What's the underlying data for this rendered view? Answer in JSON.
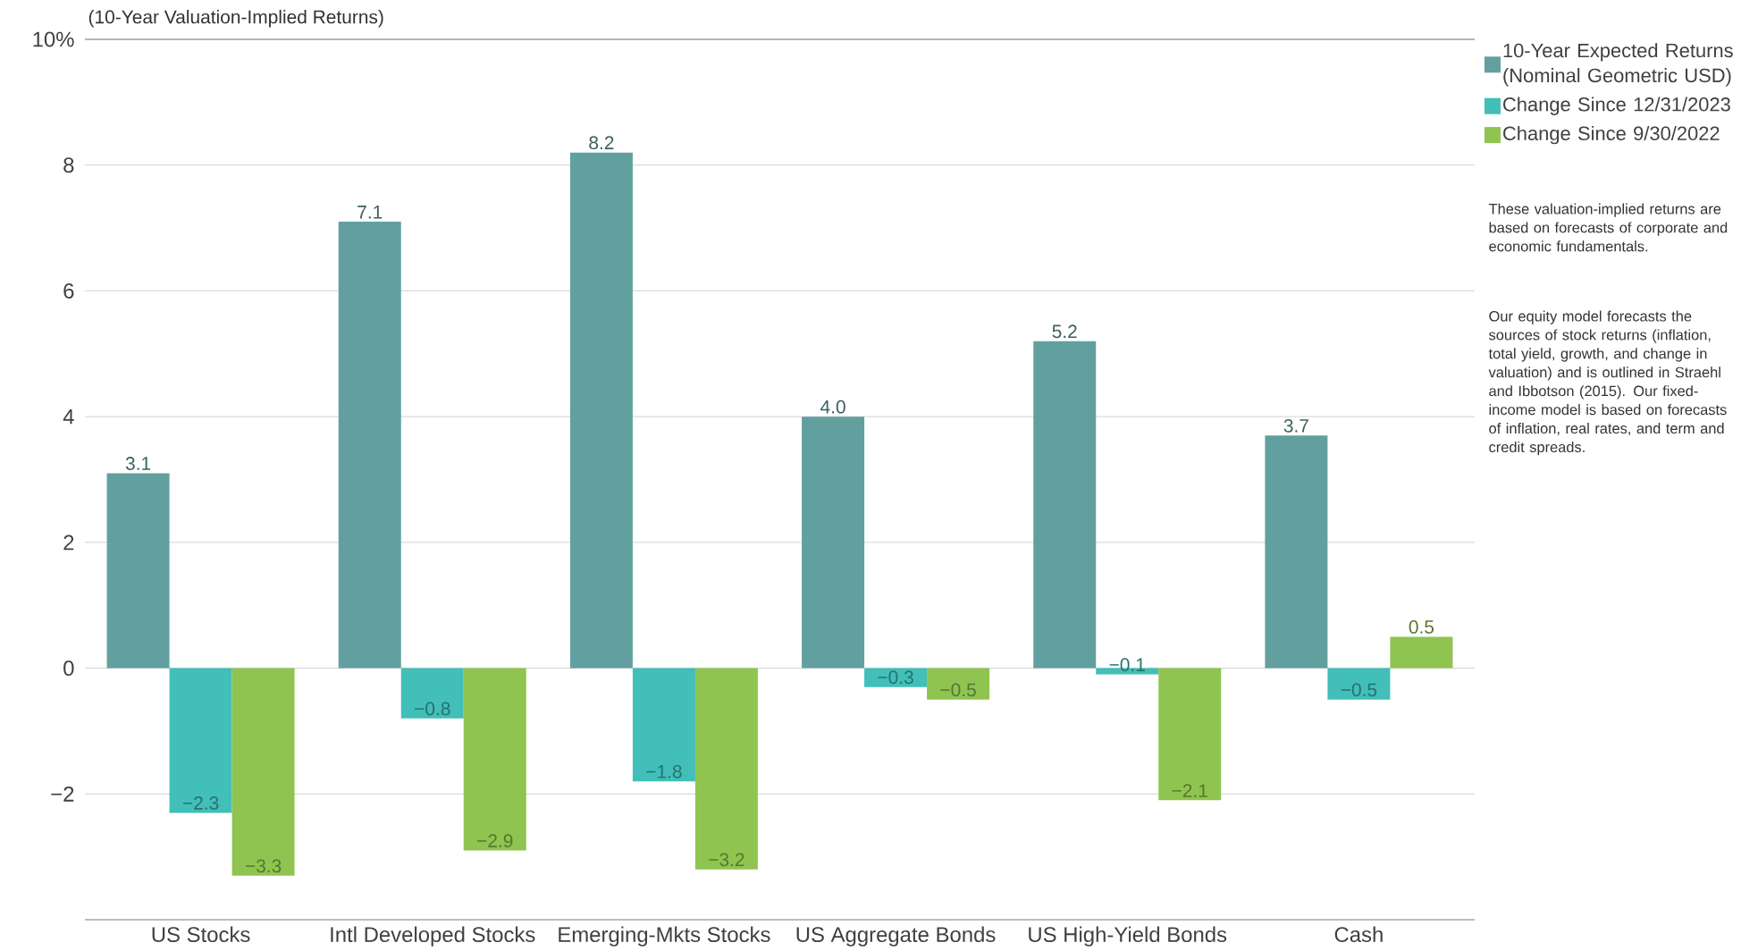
{
  "chart_data": {
    "type": "bar",
    "title": "(10-Year Valuation-Implied Returns)",
    "categories": [
      "US Stocks",
      "Intl Developed Stocks",
      "Emerging-Mkts Stocks",
      "US Aggregate Bonds",
      "US High-Yield Bonds",
      "Cash"
    ],
    "series": [
      {
        "name": "10-Year Expected Returns (Nominal Geometric USD)",
        "color": "#62a09f",
        "values": [
          3.1,
          7.1,
          8.2,
          4.0,
          5.2,
          3.7
        ],
        "value_labels": [
          "3.1",
          "7.1",
          "8.2",
          "4.0",
          "5.2",
          "3.7"
        ]
      },
      {
        "name": "Change Since 12/31/2023",
        "color": "#41bfb8",
        "values": [
          -2.3,
          -0.8,
          -1.8,
          -0.3,
          -0.1,
          -0.5
        ],
        "value_labels": [
          "−2.3",
          "−0.8",
          "−1.8",
          "−0.3",
          "−0.1",
          "−0.5"
        ]
      },
      {
        "name": "Change Since 9/30/2022",
        "color": "#8fc450",
        "values": [
          -3.3,
          -2.9,
          -3.2,
          -0.5,
          -2.1,
          0.5
        ],
        "value_labels": [
          "−3.3",
          "−2.9",
          "−3.2",
          "−0.5",
          "−2.1",
          "0.5"
        ]
      }
    ],
    "ylim": [
      -4,
      10
    ],
    "yticks": [
      {
        "value": -2,
        "label": "−2"
      },
      0,
      2,
      4,
      6,
      8,
      {
        "value": 10,
        "label": "10%"
      }
    ],
    "grid": "y",
    "legend": "top right",
    "annotations": [
      "These valuation-implied returns are based on forecasts of corporate and economic fundamentals.",
      "Our equity model forecasts the sources of stock returns (inflation, total yield, growth, and change in valuation) and is outlined in Straehl and Ibbotson (2015). Our fixed-income model is based on forecasts of inflation, real rates, and term and credit spreads."
    ]
  }
}
